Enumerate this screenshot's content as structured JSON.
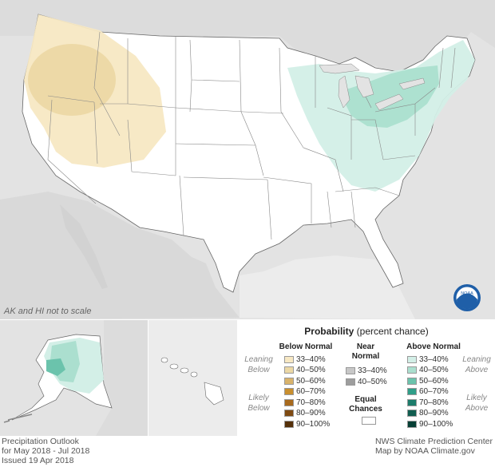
{
  "map": {
    "scale_note": "AK and HI not to scale",
    "noaa_logo_text": "NOAA"
  },
  "legend": {
    "title_bold": "Probability",
    "title_rest": " (percent chance)",
    "below_normal": {
      "heading": "Below Normal",
      "leaning": "Leaning Below",
      "likely": "Likely Below",
      "items": [
        {
          "label": "33–40%",
          "color": "#f7e8c3"
        },
        {
          "label": "40–50%",
          "color": "#ecd8a5"
        },
        {
          "label": "50–60%",
          "color": "#d9b36b"
        },
        {
          "label": "60–70%",
          "color": "#c98f2e"
        },
        {
          "label": "70–80%",
          "color": "#a86a1d"
        },
        {
          "label": "80–90%",
          "color": "#7f4a12"
        },
        {
          "label": "90–100%",
          "color": "#55300a"
        }
      ]
    },
    "near_normal": {
      "heading_line1": "Near",
      "heading_line2": "Normal",
      "items": [
        {
          "label": "33–40%",
          "color": "#c7c7c7"
        },
        {
          "label": "40–50%",
          "color": "#9d9d9d"
        }
      ]
    },
    "equal_chances": {
      "heading_line1": "Equal",
      "heading_line2": "Chances",
      "color": "#ffffff"
    },
    "above_normal": {
      "heading": "Above Normal",
      "leaning": "Leaning Above",
      "likely": "Likely Above",
      "items": [
        {
          "label": "33–40%",
          "color": "#d3efe7"
        },
        {
          "label": "40–50%",
          "color": "#abdfcf"
        },
        {
          "label": "50–60%",
          "color": "#6bc3ac"
        },
        {
          "label": "60–70%",
          "color": "#2f9e88"
        },
        {
          "label": "70–80%",
          "color": "#1d7c6b"
        },
        {
          "label": "80–90%",
          "color": "#115e50"
        },
        {
          "label": "90–100%",
          "color": "#073f35"
        }
      ]
    }
  },
  "footer": {
    "left_line1": "Precipitation Outlook",
    "left_line2": "for May 2018 - Jul 2018",
    "left_line3": "Issued 19 Apr 2018",
    "right_line1": "NWS Climate Prediction Center",
    "right_line2": "Map by NOAA Climate.gov"
  }
}
